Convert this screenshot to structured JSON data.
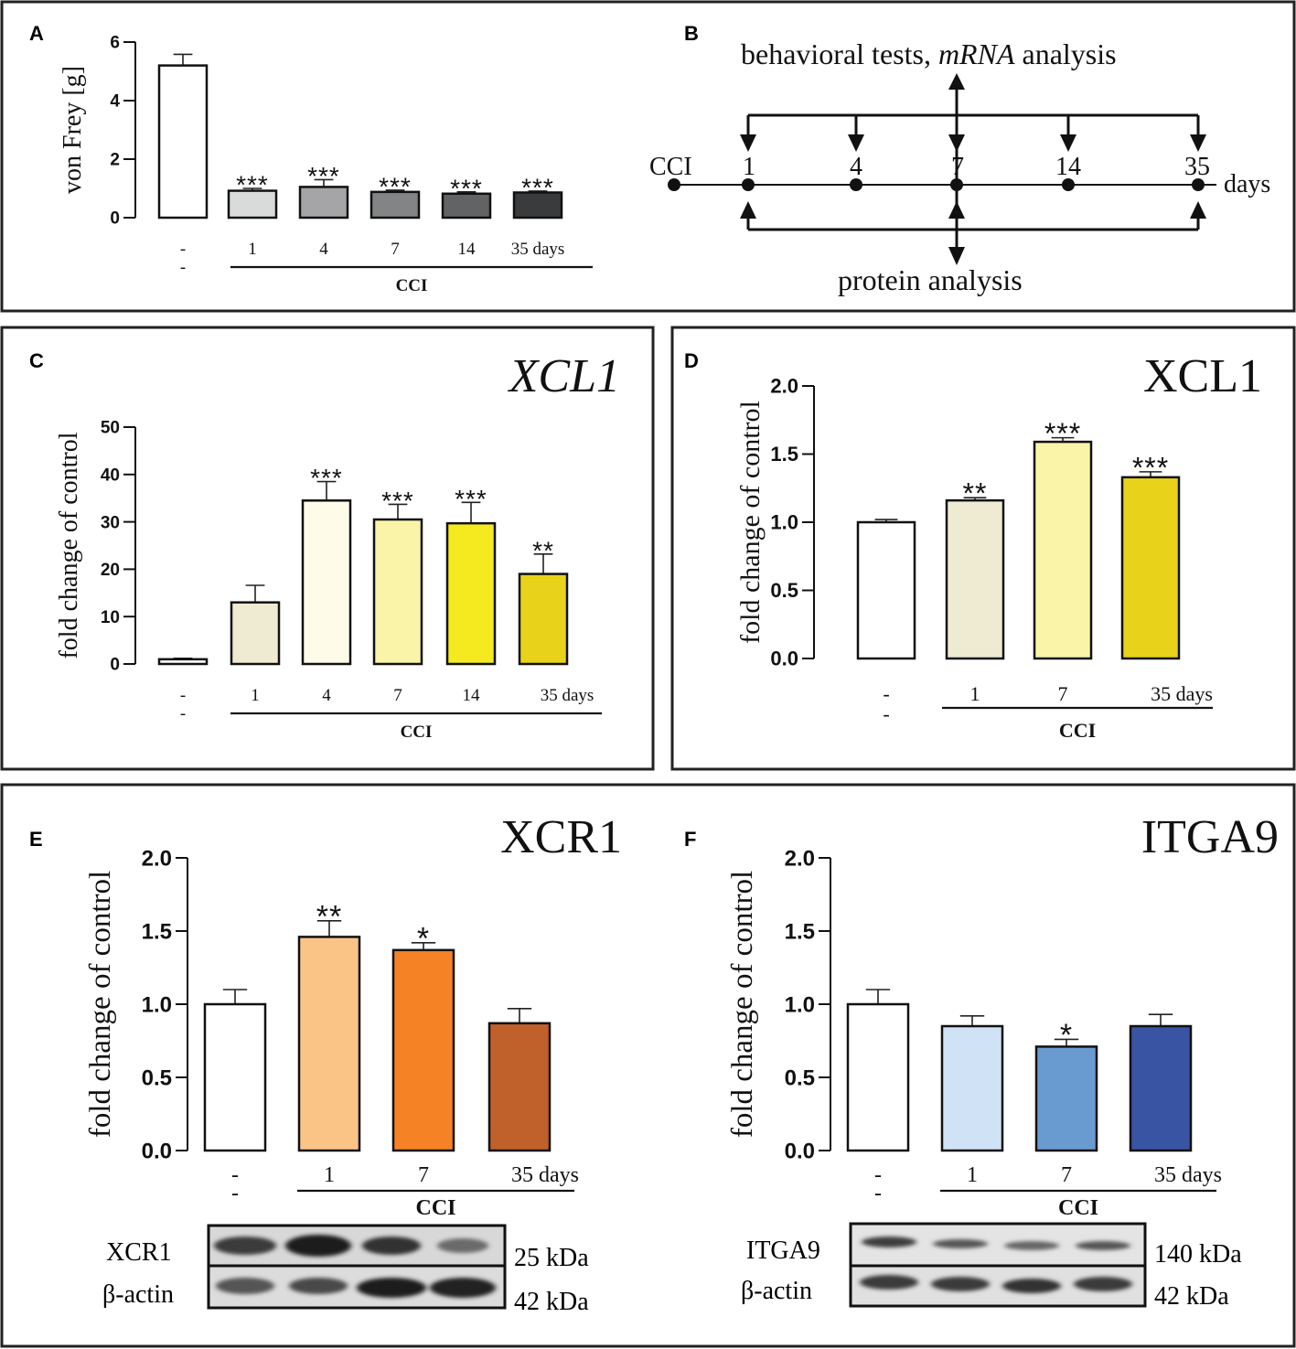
{
  "panels": {
    "A": {
      "letter": "A"
    },
    "B": {
      "letter": "B"
    },
    "C": {
      "letter": "C"
    },
    "D": {
      "letter": "D"
    },
    "E": {
      "letter": "E"
    },
    "F": {
      "letter": "F"
    }
  },
  "timeline": {
    "top_label_pre": "behavioral tests, ",
    "top_label_em": "mRNA",
    "top_label_post": " analysis",
    "bottom_label": "protein analysis",
    "start_label": "CCI",
    "unit_label": "days",
    "days": [
      "1",
      "4",
      "7",
      "14",
      "35"
    ]
  },
  "blots": {
    "E": {
      "rows": [
        "XCR1",
        "β-actin"
      ],
      "sizes": [
        "25 kDa",
        "42 kDa"
      ]
    },
    "F": {
      "rows": [
        "ITGA9",
        "β-actin"
      ],
      "sizes": [
        "140 kDa",
        "42 kDa"
      ]
    }
  },
  "chart_data": [
    {
      "id": "A",
      "type": "bar",
      "title": "",
      "ylabel": "von Frey [g]",
      "ylim": [
        0,
        6
      ],
      "yticks": [
        "0",
        "2",
        "4",
        "6"
      ],
      "ytick_values": [
        0,
        2,
        4,
        6
      ],
      "categories": [
        "-",
        "1",
        "4",
        "7",
        "14",
        "35 days"
      ],
      "control_sub": "-",
      "group_label": "CCI",
      "values": [
        5.2,
        0.92,
        1.05,
        0.88,
        0.82,
        0.86
      ],
      "errors": [
        0.38,
        0.08,
        0.25,
        0.06,
        0.06,
        0.05
      ],
      "significance": [
        "",
        "***",
        "***",
        "***",
        "***",
        "***"
      ],
      "colors": [
        "#ffffff",
        "#d9dbdb",
        "#a5a5a8",
        "#838485",
        "#626364",
        "#3a3b3c"
      ]
    },
    {
      "id": "C",
      "type": "bar",
      "title": "XCL1",
      "title_italic": true,
      "ylabel": "fold change of control",
      "ylim": [
        0,
        50
      ],
      "yticks": [
        "0",
        "10",
        "20",
        "30",
        "40",
        "50"
      ],
      "ytick_values": [
        0,
        10,
        20,
        30,
        40,
        50
      ],
      "categories": [
        "-",
        "1",
        "4",
        "7",
        "14",
        "35 days"
      ],
      "control_sub": "-",
      "group_label": "CCI",
      "values": [
        1.0,
        13,
        34.5,
        30.5,
        29.7,
        19
      ],
      "errors": [
        0.2,
        3.6,
        4.0,
        3.2,
        4.4,
        4.2
      ],
      "significance": [
        "",
        "",
        "***",
        "***",
        "***",
        "**"
      ],
      "colors": [
        "#ffffff",
        "#efead2",
        "#fefbe9",
        "#f9f4a8",
        "#f4ea1f",
        "#e8d31a"
      ]
    },
    {
      "id": "D",
      "type": "bar",
      "title": "XCL1",
      "title_italic": false,
      "ylabel": "fold change of control",
      "ylim": [
        0,
        2
      ],
      "yticks": [
        "0.0",
        "0.5",
        "1.0",
        "1.5",
        "2.0"
      ],
      "ytick_values": [
        0,
        0.5,
        1,
        1.5,
        2
      ],
      "categories": [
        "-",
        "1",
        "7",
        "35 days"
      ],
      "control_sub": "-",
      "group_label": "CCI",
      "values": [
        1.0,
        1.16,
        1.59,
        1.33
      ],
      "errors": [
        0.02,
        0.02,
        0.03,
        0.04
      ],
      "significance": [
        "",
        "**",
        "***",
        "***"
      ],
      "colors": [
        "#ffffff",
        "#efead2",
        "#f9f4a8",
        "#e8d31a"
      ]
    },
    {
      "id": "E",
      "type": "bar",
      "title": "XCR1",
      "title_italic": false,
      "ylabel": "fold change of control",
      "ylim": [
        0,
        2
      ],
      "yticks": [
        "0.0",
        "0.5",
        "1.0",
        "1.5",
        "2.0"
      ],
      "ytick_values": [
        0,
        0.5,
        1,
        1.5,
        2
      ],
      "categories": [
        "-",
        "1",
        "7",
        "35 days"
      ],
      "control_sub": "-",
      "group_label": "CCI",
      "values": [
        1.0,
        1.46,
        1.37,
        0.87
      ],
      "errors": [
        0.1,
        0.11,
        0.05,
        0.1
      ],
      "significance": [
        "",
        "**",
        "*",
        ""
      ],
      "colors": [
        "#ffffff",
        "#fbc487",
        "#f58225",
        "#c0602b"
      ]
    },
    {
      "id": "F",
      "type": "bar",
      "title": "ITGA9",
      "title_italic": false,
      "ylabel": "fold change of control",
      "ylim": [
        0,
        2
      ],
      "yticks": [
        "0.0",
        "0.5",
        "1.0",
        "1.5",
        "2.0"
      ],
      "ytick_values": [
        0,
        0.5,
        1,
        1.5,
        2
      ],
      "categories": [
        "-",
        "1",
        "7",
        "35 days"
      ],
      "control_sub": "-",
      "group_label": "CCI",
      "values": [
        1.0,
        0.85,
        0.71,
        0.85
      ],
      "errors": [
        0.1,
        0.07,
        0.05,
        0.08
      ],
      "significance": [
        "",
        "",
        "*",
        ""
      ],
      "colors": [
        "#ffffff",
        "#cfe2f6",
        "#6a9bd0",
        "#3a54a4"
      ]
    }
  ]
}
